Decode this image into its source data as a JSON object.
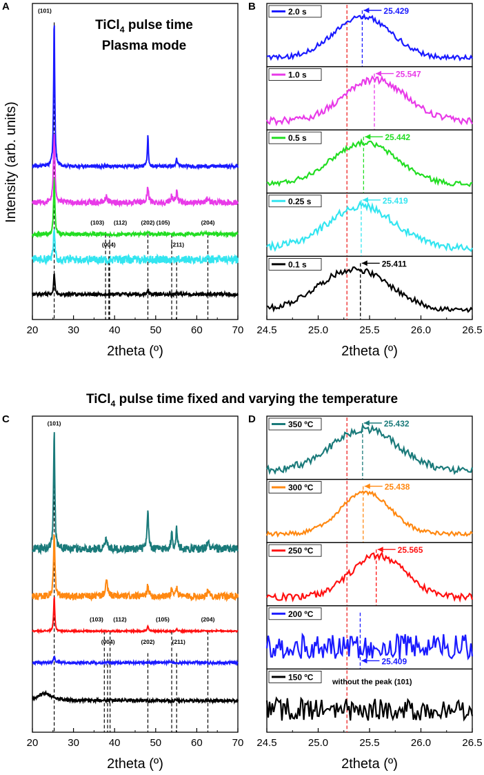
{
  "figure": {
    "section_title_part1": "TiCl",
    "section_title_sub": "4",
    "section_title_part2": " pulse time fixed and varying the temperature"
  },
  "chart_data": [
    {
      "id": "A",
      "type": "line",
      "panel_letter": "A",
      "title_line1_a": "TiCl",
      "title_line1_sub": "4",
      "title_line1_b": " pulse time",
      "title_line2": "Plasma mode",
      "xlabel": "2theta (º)",
      "ylabel": "Intensity (arb. units)",
      "xlim": [
        20,
        70
      ],
      "xticks": [
        20,
        30,
        40,
        50,
        60,
        70
      ],
      "ylim": [
        0,
        100
      ],
      "reference_lines": [
        {
          "x": 25.3,
          "label": "(101)",
          "ltop": 3,
          "label_x": 23.0
        },
        {
          "x": 37.8,
          "label": "(103)",
          "ltop": 70,
          "label_x": 35.8
        },
        {
          "x": 38.6,
          "label": "(004)",
          "ltop": 77,
          "label_x": 38.6
        },
        {
          "x": 38.8,
          "label": "(112)",
          "ltop": 70,
          "label_x": 41.4
        },
        {
          "x": 48.1,
          "label": "(202)",
          "ltop": 70,
          "label_x": 48.1
        },
        {
          "x": 53.9,
          "label": "(105)",
          "ltop": 70,
          "label_x": 51.8
        },
        {
          "x": 55.1,
          "label": "(211)",
          "ltop": 77,
          "label_x": 55.3
        },
        {
          "x": 62.7,
          "label": "(204)",
          "ltop": 70,
          "label_x": 62.7
        }
      ],
      "series": [
        {
          "name": "0.1 s",
          "color": "#000000",
          "baseline": 8,
          "noise": 0.55,
          "peaks": [
            [
              25.3,
              6.5,
              0.18
            ],
            [
              48.1,
              0.9,
              0.18
            ],
            [
              55.1,
              0.5,
              0.2
            ]
          ]
        },
        {
          "name": "0.25 s",
          "color": "#33e5f0",
          "baseline": 19,
          "noise": 1.3,
          "peaks": [
            [
              25.3,
              10,
              0.2
            ]
          ]
        },
        {
          "name": "0.5 s",
          "color": "#22dd22",
          "baseline": 27,
          "noise": 0.6,
          "peaks": [
            [
              25.3,
              18,
              0.18
            ],
            [
              48.1,
              0.8,
              0.2
            ]
          ]
        },
        {
          "name": "1.0 s",
          "color": "#e83ae8",
          "baseline": 37,
          "noise": 0.9,
          "peaks": [
            [
              25.3,
              22,
              0.22
            ],
            [
              38.0,
              1.8,
              0.35
            ],
            [
              48.1,
              5,
              0.22
            ],
            [
              53.9,
              2.2,
              0.25
            ],
            [
              55.1,
              3.2,
              0.25
            ],
            [
              62.7,
              1.5,
              0.3
            ]
          ]
        },
        {
          "name": "2.0 s",
          "color": "#1a1aff",
          "baseline": 48.5,
          "noise": 0.55,
          "peaks": [
            [
              25.3,
              47,
              0.16
            ],
            [
              48.1,
              10,
              0.14
            ],
            [
              55.1,
              2.5,
              0.18
            ]
          ]
        }
      ]
    },
    {
      "id": "B",
      "type": "line",
      "panel_letter": "B",
      "xlabel": "2theta (º)",
      "xlim": [
        24.5,
        26.5
      ],
      "xticks": [
        24.5,
        25.0,
        25.5,
        26.0,
        26.5
      ],
      "red_reference_x": 25.28,
      "subpanels": [
        {
          "label": "2.0 s",
          "color": "#1a1aff",
          "peak_x": 25.429,
          "annotation": "25.429",
          "arrow_dir": "left",
          "noise": 0.12,
          "center": 25.43,
          "width": 0.28
        },
        {
          "label": "1.0 s",
          "color": "#e83ae8",
          "peak_x": 25.547,
          "annotation": "25.547",
          "arrow_dir": "left",
          "noise": 0.16,
          "center": 25.55,
          "width": 0.3
        },
        {
          "label": "0.5 s",
          "color": "#22dd22",
          "peak_x": 25.442,
          "annotation": "25.442",
          "arrow_dir": "left",
          "noise": 0.12,
          "center": 25.45,
          "width": 0.32
        },
        {
          "label": "0.25 s",
          "color": "#33e5f0",
          "peak_x": 25.419,
          "annotation": "25.419",
          "arrow_dir": "left",
          "noise": 0.18,
          "center": 25.42,
          "width": 0.32
        },
        {
          "label": "0.1 s",
          "color": "#000000",
          "peak_x": 25.411,
          "annotation": "25.411",
          "arrow_dir": "left",
          "noise": 0.14,
          "center": 25.35,
          "width": 0.35
        }
      ]
    },
    {
      "id": "C",
      "type": "line",
      "panel_letter": "C",
      "xlabel": "2theta (º)",
      "xlim": [
        20,
        70
      ],
      "xticks": [
        20,
        30,
        40,
        50,
        60,
        70
      ],
      "ylim": [
        0,
        100
      ],
      "reference_lines": [
        {
          "x": 25.3,
          "label": "(101)",
          "ltop": 3,
          "label_x": 25.3
        },
        {
          "x": 37.5,
          "label": "(103)",
          "ltop": 65,
          "label_x": 35.6
        },
        {
          "x": 38.3,
          "label": "(004)",
          "ltop": 72,
          "label_x": 38.4
        },
        {
          "x": 38.9,
          "label": "(112)",
          "ltop": 65,
          "label_x": 41.3
        },
        {
          "x": 48.1,
          "label": "(202)",
          "ltop": 72,
          "label_x": 48.1
        },
        {
          "x": 53.9,
          "label": "(105)",
          "ltop": 65,
          "label_x": 51.7
        },
        {
          "x": 55.1,
          "label": "(211)",
          "ltop": 72,
          "label_x": 55.6
        },
        {
          "x": 62.7,
          "label": "(204)",
          "ltop": 65,
          "label_x": 62.7
        }
      ],
      "series": [
        {
          "name": "150 ºC",
          "color": "#000000",
          "baseline": 10,
          "noise": 0.5,
          "peaks": [
            [
              23.0,
              2.3,
              2.0
            ]
          ]
        },
        {
          "name": "200 ºC",
          "color": "#1a1aff",
          "baseline": 22,
          "noise": 0.4,
          "peaks": [
            [
              25.3,
              1.8,
              0.25
            ]
          ]
        },
        {
          "name": "250 ºC",
          "color": "#ff1111",
          "baseline": 32,
          "noise": 0.25,
          "peaks": [
            [
              25.3,
              11,
              0.16
            ],
            [
              48.1,
              1.5,
              0.18
            ],
            [
              55.1,
              0.6,
              0.2
            ]
          ]
        },
        {
          "name": "300 ºC",
          "color": "#ff8811",
          "baseline": 43,
          "noise": 1.1,
          "peaks": [
            [
              25.3,
              20,
              0.2
            ],
            [
              38.0,
              4.5,
              0.35
            ],
            [
              48.1,
              3.8,
              0.22
            ],
            [
              53.9,
              2.2,
              0.25
            ],
            [
              55.1,
              2.8,
              0.25
            ],
            [
              62.7,
              1.5,
              0.3
            ]
          ]
        },
        {
          "name": "350 ºC",
          "color": "#1a7a7a",
          "baseline": 58,
          "noise": 1.3,
          "peaks": [
            [
              25.3,
              38,
              0.18
            ],
            [
              38.0,
              3.2,
              0.35
            ],
            [
              48.1,
              12,
              0.2
            ],
            [
              53.9,
              4.8,
              0.22
            ],
            [
              55.1,
              6.2,
              0.22
            ],
            [
              62.7,
              2.3,
              0.3
            ]
          ]
        }
      ]
    },
    {
      "id": "D",
      "type": "line",
      "panel_letter": "D",
      "xlabel": "2theta (º)",
      "xlim": [
        24.5,
        26.5
      ],
      "xticks": [
        24.5,
        25.0,
        25.5,
        26.0,
        26.5
      ],
      "red_reference_x": 25.28,
      "subpanels": [
        {
          "label": "350 ºC",
          "color": "#1a7a7a",
          "peak_x": 25.432,
          "annotation": "25.432",
          "arrow_dir": "left",
          "noise": 0.18,
          "center": 25.45,
          "width": 0.32
        },
        {
          "label": "300 ºC",
          "color": "#ff8811",
          "peak_x": 25.438,
          "annotation": "25.438",
          "arrow_dir": "left",
          "noise": 0.1,
          "center": 25.46,
          "width": 0.24
        },
        {
          "label": "250 ºC",
          "color": "#ff1111",
          "peak_x": 25.565,
          "annotation": "25.565",
          "arrow_dir": "left",
          "noise": 0.16,
          "center": 25.58,
          "width": 0.26
        },
        {
          "label": "200 ºC",
          "color": "#1a1aff",
          "peak_x": 25.409,
          "annotation": "25.409",
          "arrow_dir": "below",
          "noise": 0.55,
          "center": 25.4,
          "width": 0.3
        },
        {
          "label": "150 ºC",
          "color": "#000000",
          "peak_x": null,
          "annotation": "without the peak (101)",
          "arrow_dir": "none",
          "noise": 0.5,
          "center": 25.4,
          "width": 0.3
        }
      ]
    }
  ]
}
